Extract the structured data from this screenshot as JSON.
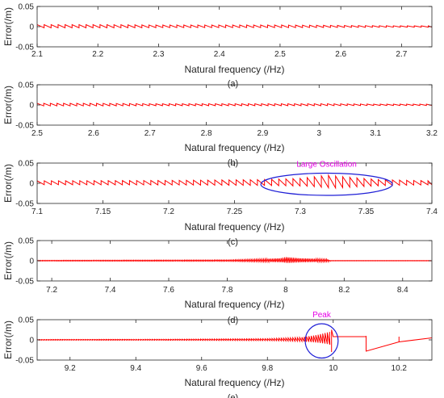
{
  "chart_data": [
    {
      "type": "line",
      "panel_label": "(a)",
      "xlabel": "Natural frequency (/Hz)",
      "ylabel": "Error(/m)",
      "xlim": [
        2.1,
        2.75
      ],
      "ylim": [
        -0.05,
        0.05
      ],
      "xticks": [
        "2.1",
        "2.2",
        "2.3",
        "2.4",
        "2.5",
        "2.6",
        "2.7"
      ],
      "yticks": [
        "0.05",
        "0",
        "-0.05"
      ],
      "series": [
        {
          "color": "#ff0000",
          "pattern": "sawtooth",
          "x": [
            2.1,
            2.2,
            2.3,
            2.4,
            2.5,
            2.6,
            2.7,
            2.75
          ],
          "amplitude": [
            0.005,
            0.005,
            0.004,
            0.004,
            0.004,
            0.003,
            0.002,
            0.002
          ],
          "spacing": 0.0115
        }
      ]
    },
    {
      "type": "line",
      "panel_label": "(b)",
      "xlabel": "Natural frequency (/Hz)",
      "ylabel": "Error(/m)",
      "xlim": [
        2.5,
        3.2
      ],
      "ylim": [
        -0.05,
        0.05
      ],
      "xticks": [
        "2.5",
        "2.6",
        "2.7",
        "2.8",
        "2.9",
        "3",
        "3.1",
        "3.2"
      ],
      "yticks": [
        "0.05",
        "0",
        "-0.05"
      ],
      "series": [
        {
          "color": "#ff0000",
          "pattern": "sawtooth",
          "x": [
            2.5,
            2.6,
            2.7,
            2.8,
            2.9,
            3.0,
            3.1,
            3.2
          ],
          "amplitude": [
            0.004,
            0.004,
            0.003,
            0.003,
            0.003,
            0.003,
            0.002,
            0.002
          ],
          "spacing": 0.0117
        }
      ]
    },
    {
      "type": "line",
      "panel_label": "(c)",
      "xlabel": "Natural frequency (/Hz)",
      "ylabel": "Error(/m)",
      "xlim": [
        7.1,
        7.4
      ],
      "ylim": [
        -0.05,
        0.05
      ],
      "xticks": [
        "7.1",
        "7.15",
        "7.2",
        "7.25",
        "7.3",
        "7.35",
        "7.4"
      ],
      "yticks": [
        "0.05",
        "0",
        "-0.05"
      ],
      "annotations": [
        {
          "text": "Large Oscillation",
          "color": "#e600e6",
          "shape": "ellipse",
          "x_range": [
            7.27,
            7.37
          ],
          "y_range": [
            -0.03,
            0.025
          ]
        }
      ],
      "series": [
        {
          "color": "#ff0000",
          "pattern": "sawtooth",
          "x": [
            7.1,
            7.2,
            7.27,
            7.3,
            7.32,
            7.34,
            7.36,
            7.4
          ],
          "amplitude": [
            0.006,
            0.007,
            0.009,
            0.012,
            0.02,
            0.014,
            0.009,
            0.006
          ],
          "spacing": 0.0054
        }
      ]
    },
    {
      "type": "line",
      "panel_label": "(d)",
      "xlabel": "Natural frequency (/Hz)",
      "ylabel": "Error(/m)",
      "xlim": [
        7.15,
        8.5
      ],
      "ylim": [
        -0.05,
        0.05
      ],
      "xticks": [
        "7.2",
        "7.4",
        "7.6",
        "7.8",
        "8",
        "8.2",
        "8.4"
      ],
      "yticks": [
        "0.05",
        "0",
        "-0.05"
      ],
      "series": [
        {
          "color": "#ff0000",
          "pattern": "sawtooth",
          "x": [
            7.15,
            7.8,
            7.9,
            7.98,
            8.0,
            8.05,
            8.1,
            8.14,
            8.15,
            8.5
          ],
          "amplitude": [
            0.001,
            0.002,
            0.004,
            0.006,
            0.009,
            0.006,
            0.005,
            0.004,
            0.0005,
            0.0005
          ],
          "spacing": 0.006
        }
      ]
    },
    {
      "type": "line",
      "panel_label": "(e)",
      "xlabel": "Natural frequency (/Hz)",
      "ylabel": "Error(/m)",
      "xlim": [
        9.1,
        10.3
      ],
      "ylim": [
        -0.05,
        0.05
      ],
      "xticks": [
        "9.2",
        "9.4",
        "9.6",
        "9.8",
        "10",
        "10.2"
      ],
      "yticks": [
        "0.05",
        "0",
        "-0.05"
      ],
      "annotations": [
        {
          "text": "Peak",
          "color": "#e600e6",
          "shape": "ellipse",
          "x_range": [
            9.915,
            10.015
          ],
          "y_range": [
            -0.045,
            0.04
          ]
        }
      ],
      "series": [
        {
          "color": "#ff0000",
          "pattern": "sawtooth",
          "x": [
            9.1,
            9.5,
            9.8,
            9.9,
            9.95,
            9.99
          ],
          "amplitude": [
            0.001,
            0.0015,
            0.003,
            0.006,
            0.012,
            0.02
          ],
          "spacing": 0.007
        },
        {
          "color": "#ff0000",
          "pattern": "polyline",
          "x": [
            9.995,
            9.995,
            10.0,
            10.1,
            10.1,
            10.1,
            10.2,
            10.3
          ],
          "y": [
            -0.03,
            0.025,
            0.008,
            0.008,
            0.01,
            -0.028,
            -0.005,
            0.005
          ]
        },
        {
          "color": "#ff0000",
          "pattern": "spikes",
          "x": [
            10.2
          ],
          "y0": [
            -0.005
          ],
          "y1": [
            0.008
          ]
        }
      ]
    }
  ]
}
